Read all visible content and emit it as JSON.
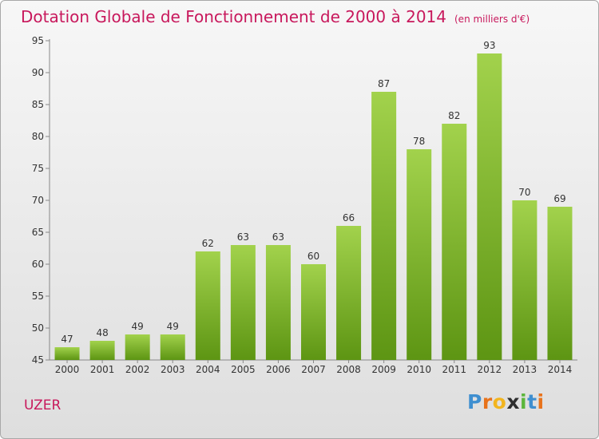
{
  "title": "Dotation Globale de Fonctionnement de 2000 à 2014",
  "unit": "(en milliers d'€)",
  "town": "UZER",
  "logo": {
    "letters": [
      "P",
      "r",
      "o",
      "x",
      "i",
      "t",
      "i"
    ],
    "colors": [
      "#3f8fd0",
      "#e8731c",
      "#f2b51f",
      "#2f2f2f",
      "#5cb63c",
      "#3f8fd0",
      "#e8731c"
    ]
  },
  "colors": {
    "accent": "#c8185c",
    "bar_top": "#a2d24c",
    "bar_bottom": "#5d9513"
  },
  "chart_data": {
    "type": "bar",
    "title": "Dotation Globale de Fonctionnement de 2000 à 2014",
    "subtitle": "(en milliers d'€)",
    "categories": [
      "2000",
      "2001",
      "2002",
      "2003",
      "2004",
      "2005",
      "2006",
      "2007",
      "2008",
      "2009",
      "2010",
      "2011",
      "2012",
      "2013",
      "2014"
    ],
    "values": [
      47,
      48,
      49,
      49,
      62,
      63,
      63,
      60,
      66,
      87,
      78,
      82,
      93,
      70,
      69
    ],
    "ylim": [
      45,
      95
    ],
    "yticks": [
      45,
      50,
      55,
      60,
      65,
      70,
      75,
      80,
      85,
      90,
      95
    ],
    "grid": false,
    "legend": "none"
  }
}
